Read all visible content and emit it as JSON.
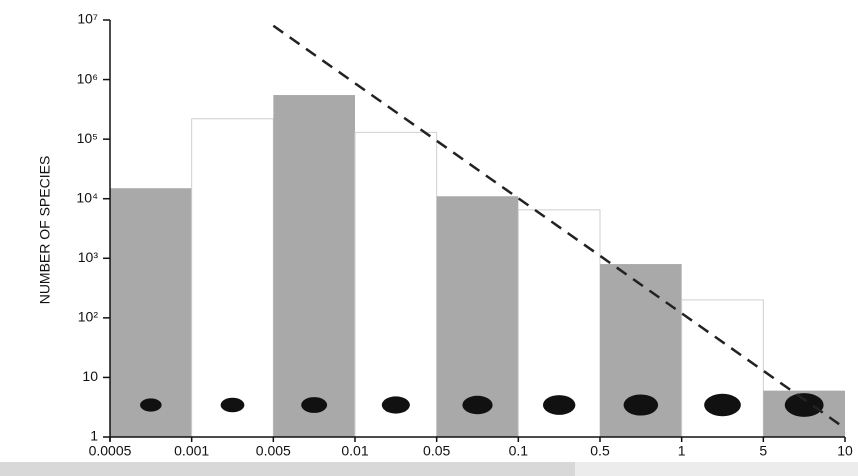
{
  "chart_data": {
    "type": "histogram",
    "y_label": "NUMBER OF SPECIES",
    "bins": [
      0.0005,
      0.001,
      0.005,
      0.01,
      0.05,
      0.1,
      0.5,
      1,
      5,
      10
    ],
    "values": [
      15000,
      220000,
      550000,
      130000,
      11000,
      6500,
      800,
      200,
      6
    ],
    "colors": [
      "#a9a9a9",
      "#ffffff"
    ],
    "ylim": [
      1,
      10000000
    ],
    "log_y": true,
    "yticks": [
      1,
      10,
      {
        "value": 100,
        "label": "10²"
      },
      {
        "value": 1000,
        "label": "10³"
      },
      {
        "value": 10000,
        "label": "10⁴"
      },
      {
        "value": 100000,
        "label": "10⁵"
      },
      {
        "value": 1000000,
        "label": "10⁶"
      },
      {
        "value": 10000000,
        "label": "10⁷"
      }
    ],
    "trend_line": {
      "x": [
        0.005,
        10
      ],
      "values": [
        8000000,
        1.4
      ],
      "color": "#222222"
    }
  }
}
